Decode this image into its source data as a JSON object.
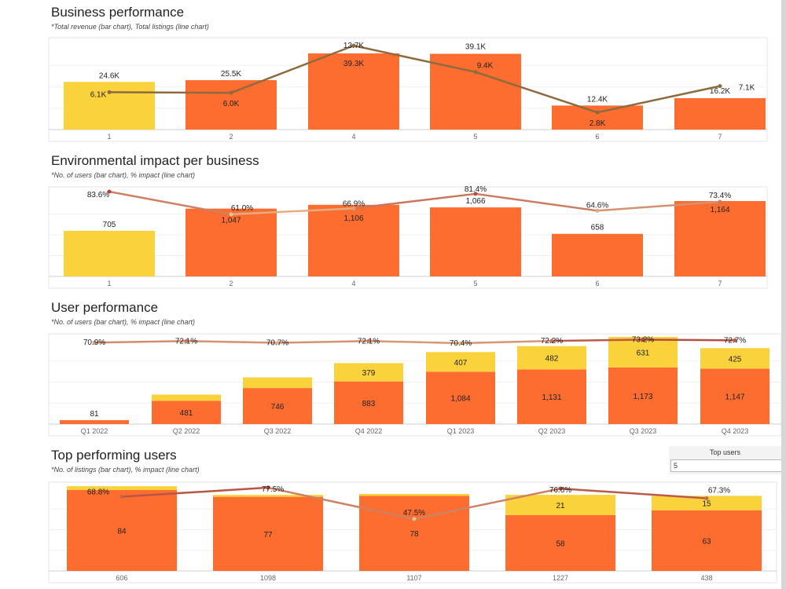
{
  "colors": {
    "orange": "#FC6D2F",
    "yellow": "#F9D23C",
    "line_brown": "#8E6B3F",
    "line_high": "#B2433A",
    "line_low": "#E9BD8E"
  },
  "chart_data": [
    {
      "type": "bar+line",
      "title": "Business performance",
      "subtitle": "*Total revenue (bar chart), Total listings (line chart)",
      "categories": [
        "1",
        "2",
        "4",
        "5",
        "6",
        "7"
      ],
      "bars": {
        "values": [
          24600,
          25500,
          39300,
          39100,
          12400,
          16200
        ],
        "labels": [
          "24.6K",
          "25.5K",
          "39.3K",
          "39.1K",
          "12.4K",
          "16.2K"
        ],
        "colors": [
          "yellow",
          "orange",
          "orange",
          "orange",
          "orange",
          "orange"
        ]
      },
      "line": {
        "values": [
          6100,
          6000,
          13700,
          9400,
          2800,
          7100
        ],
        "labels": [
          "6.1K",
          "6.0K",
          "13.7K",
          "9.4K",
          "2.8K",
          "7.1K"
        ]
      }
    },
    {
      "type": "bar+line",
      "title": "Environmental impact per business",
      "subtitle": "*No. of users (bar chart), % impact (line chart)",
      "categories": [
        "1",
        "2",
        "4",
        "5",
        "6",
        "7"
      ],
      "bars": {
        "values": [
          705,
          1047,
          1106,
          1066,
          658,
          1164
        ],
        "labels": [
          "705",
          "1,047",
          "1,106",
          "1,066",
          "658",
          "1,164"
        ],
        "colors": [
          "yellow",
          "orange",
          "orange",
          "orange",
          "orange",
          "orange"
        ]
      },
      "line": {
        "values": [
          83.6,
          61.0,
          66.9,
          81.4,
          64.6,
          73.4
        ],
        "labels": [
          "83.6%",
          "61.0%",
          "66.9%",
          "81.4%",
          "64.6%",
          "73.4%"
        ]
      }
    },
    {
      "type": "stacked-bar+line",
      "title": "User performance",
      "subtitle": "*No. of users (bar chart), % impact (line chart)",
      "categories": [
        "Q1 2022",
        "Q2 2022",
        "Q3 2022",
        "Q4 2022",
        "Q1 2023",
        "Q2 2023",
        "Q3 2023",
        "Q4 2023"
      ],
      "stack": [
        {
          "color": "orange",
          "values": [
            81,
            481,
            746,
            883,
            1084,
            1131,
            1173,
            1147
          ],
          "labels": [
            "81",
            "481",
            "746",
            "883",
            "1,084",
            "1,131",
            "1,173",
            "1,147"
          ]
        },
        {
          "color": "yellow",
          "values": [
            0,
            130,
            220,
            379,
            407,
            482,
            631,
            425
          ],
          "labels": [
            "",
            "",
            "",
            "379",
            "407",
            "482",
            "631",
            "425"
          ]
        }
      ],
      "line": {
        "values": [
          70.9,
          72.1,
          70.7,
          72.1,
          70.4,
          72.2,
          73.2,
          72.7
        ],
        "labels": [
          "70.9%",
          "72.1%",
          "70.7%",
          "72.1%",
          "70.4%",
          "72.2%",
          "73.2%",
          "72.7%"
        ]
      }
    },
    {
      "type": "stacked-bar+line",
      "title": "Top performing users",
      "subtitle": "*No. of listings (bar chart), % impact (line chart)",
      "categories": [
        "606",
        "1098",
        "1107",
        "1227",
        "438"
      ],
      "stack": [
        {
          "color": "orange",
          "values": [
            84,
            77,
            78,
            58,
            63
          ],
          "labels": [
            "84",
            "77",
            "78",
            "58",
            "63"
          ]
        },
        {
          "color": "yellow",
          "values": [
            4,
            2,
            2,
            21,
            15
          ],
          "labels": [
            "",
            "",
            "",
            "21",
            "15"
          ]
        }
      ],
      "line": {
        "values": [
          68.8,
          77.5,
          47.5,
          76.6,
          67.3
        ],
        "labels": [
          "68.8%",
          "77.5%",
          "47.5%",
          "76.6%",
          "67.3%"
        ]
      }
    }
  ],
  "filter": {
    "label": "Top users",
    "value": "5"
  }
}
